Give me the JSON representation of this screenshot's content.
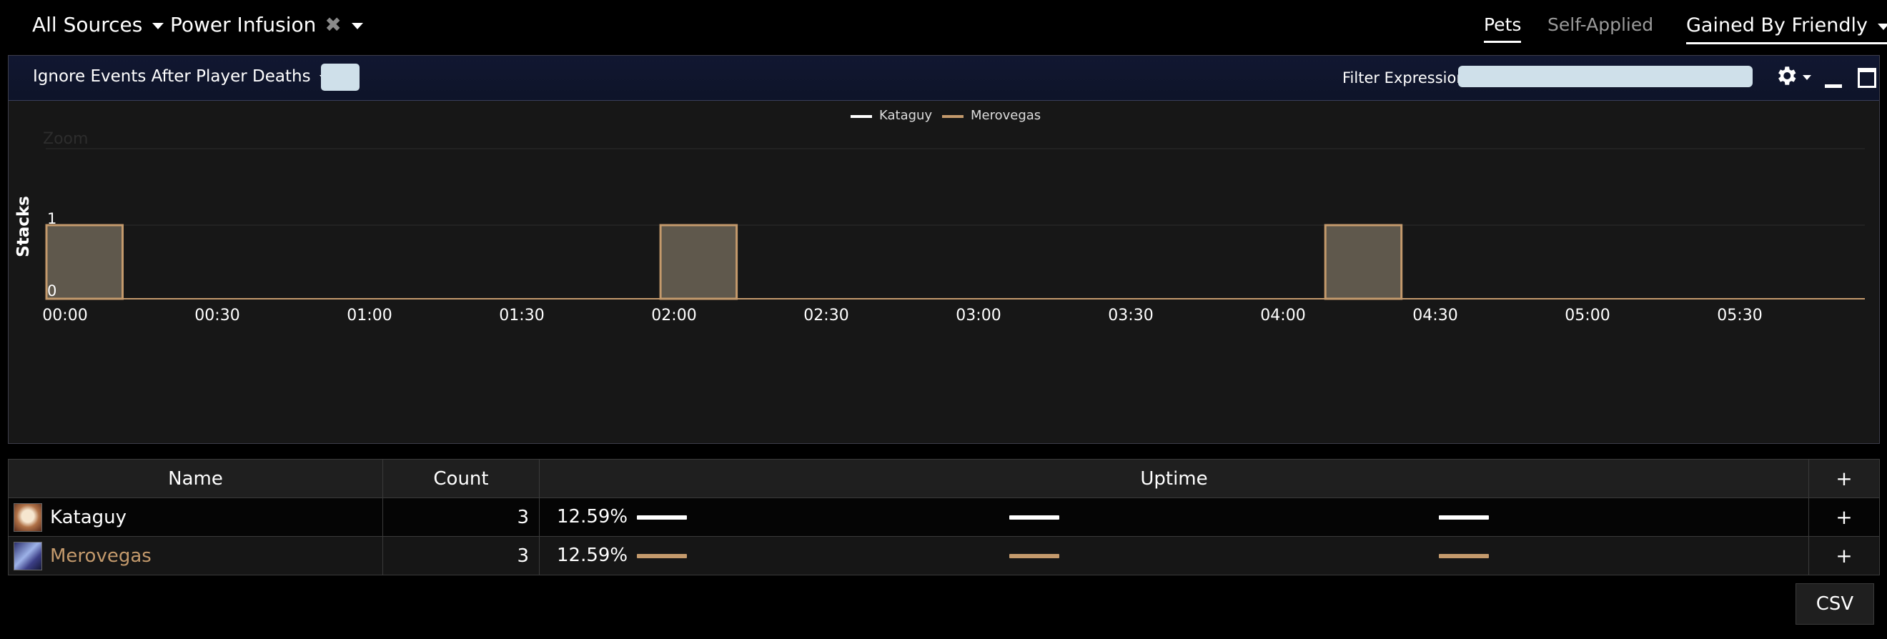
{
  "header": {
    "source_filter": "All Sources",
    "ability_filter": "Power Infusion",
    "tabs": [
      {
        "label": "Pets",
        "active": true
      },
      {
        "label": "Self-Applied",
        "active": false
      }
    ],
    "mode_dropdown": "Gained By Friendly"
  },
  "panel": {
    "death_filter": "Ignore Events After Player Deaths",
    "filter_label": "Filter Expression:",
    "filter_value": ""
  },
  "chart_data": {
    "type": "area",
    "zoom_label": "Zoom",
    "ylabel": "Stacks",
    "ylim": [
      0,
      1
    ],
    "yticks": [
      "0",
      "1"
    ],
    "xlim": [
      0,
      358
    ],
    "xticks": [
      "00:00",
      "00:30",
      "01:00",
      "01:30",
      "02:00",
      "02:30",
      "03:00",
      "03:30",
      "04:00",
      "04:30",
      "05:00",
      "05:30"
    ],
    "series": [
      {
        "name": "Kataguy",
        "color": "#ffffff",
        "intervals": [
          [
            0,
            15
          ],
          [
            121,
            136
          ],
          [
            252,
            267
          ]
        ]
      },
      {
        "name": "Merovegas",
        "color": "#c49a6c",
        "intervals": [
          [
            0,
            15
          ],
          [
            121,
            136
          ],
          [
            252,
            267
          ]
        ]
      }
    ]
  },
  "table": {
    "columns": [
      "Name",
      "Count",
      "Uptime",
      "+"
    ],
    "rows": [
      {
        "name": "Kataguy",
        "count": "3",
        "uptime": "12.59%",
        "color": "#ffffff",
        "avatar": "priest-portrait"
      },
      {
        "name": "Merovegas",
        "count": "3",
        "uptime": "12.59%",
        "color": "#c49a6c",
        "avatar": "class-portrait"
      }
    ],
    "row_action": "+"
  },
  "csv_button": "CSV",
  "colors": {
    "background": "#000000",
    "panel_header": "#10162f",
    "chart_bg": "#171717",
    "input_bg": "#cfe0ea",
    "merovegas": "#c49a6c"
  }
}
